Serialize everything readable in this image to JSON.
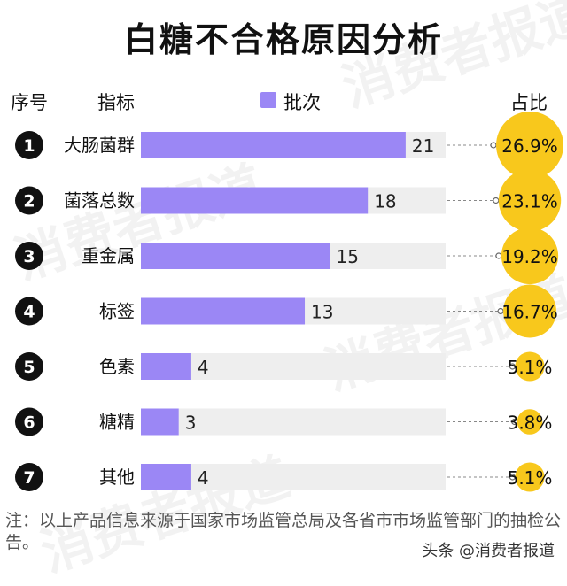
{
  "header": {
    "title": "白糖不合格原因分析",
    "col_index": "序号",
    "col_indicator": "指标",
    "legend_label": "批次",
    "col_share": "占比"
  },
  "colors": {
    "bar": "#9B87F5",
    "track": "#EEEEEE",
    "bubble": "#F8C81C",
    "badge": "#111111"
  },
  "chart_data": {
    "type": "bar",
    "orientation": "horizontal",
    "title": "白糖不合格原因分析",
    "legend": [
      "批次"
    ],
    "categories": [
      "大肠菌群",
      "菌落总数",
      "重金属",
      "标签",
      "色素",
      "糖精",
      "其他"
    ],
    "index": [
      "1",
      "2",
      "3",
      "4",
      "5",
      "6",
      "7"
    ],
    "series": [
      {
        "name": "批次",
        "values": [
          21,
          18,
          15,
          13,
          4,
          3,
          4
        ]
      }
    ],
    "share": [
      "26.9%",
      "23.1%",
      "19.2%",
      "16.7%",
      "5.1%",
      "3.8%",
      "5.1%"
    ],
    "share_values": [
      26.9,
      23.1,
      19.2,
      16.7,
      5.1,
      3.8,
      5.1
    ],
    "xlim": [
      0,
      40
    ]
  },
  "footer": {
    "note": "注：以上产品信息来源于国家市场监管总局及各省市市场监管部门的抽检公告。",
    "brand": "头条 @消费者报道"
  },
  "watermark": "消费者报道"
}
